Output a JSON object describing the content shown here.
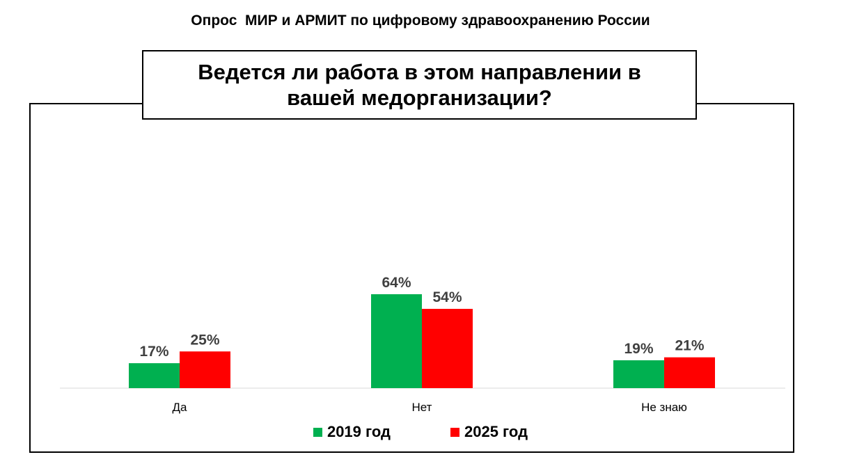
{
  "header": {
    "title": "Опрос  МИР и АРМИТ по цифровому здравоохранению России"
  },
  "chart_data": {
    "type": "bar",
    "title": "Ведется ли работа в этом направлении в вашей медорганизации?",
    "categories": [
      "Да",
      "Нет",
      "Не знаю"
    ],
    "series": [
      {
        "name": "2019 год",
        "values": [
          17,
          64,
          19
        ],
        "labels": [
          "17%",
          "64%",
          "19%"
        ],
        "color": "#00b050"
      },
      {
        "name": "2025 год",
        "values": [
          25,
          54,
          21
        ],
        "labels": [
          "25%",
          "54%",
          "21%"
        ],
        "color": "#ff0000"
      }
    ],
    "ylim": [
      0,
      70
    ],
    "value_unit": "%",
    "grid": false,
    "legend_position": "bottom",
    "data_label_color": "#404040",
    "baseline_color": "#d9d9d9"
  }
}
